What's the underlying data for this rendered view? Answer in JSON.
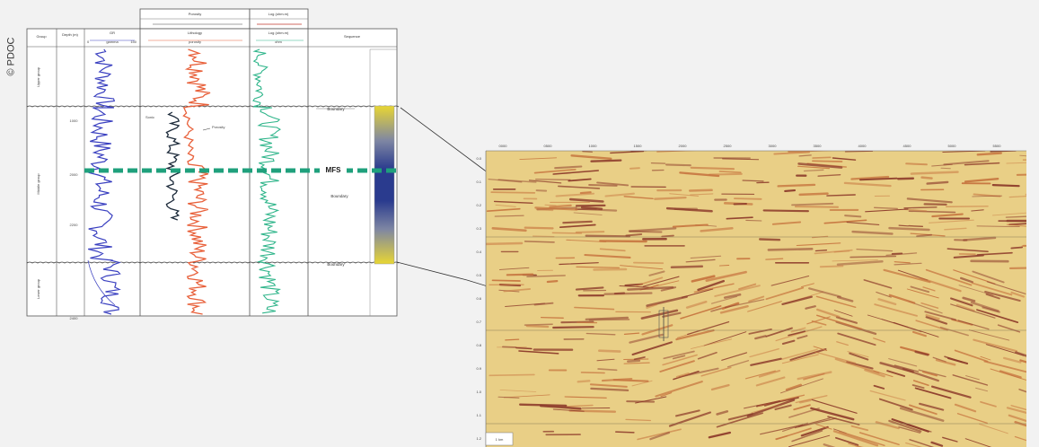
{
  "copyright": "© PDOC",
  "well_log": {
    "columns": [
      {
        "id": "group",
        "label": "Group"
      },
      {
        "id": "depth",
        "label": "Depth (m)"
      },
      {
        "id": "gr",
        "label": "GR"
      },
      {
        "id": "lith",
        "label": "Lithology"
      },
      {
        "id": "logs2",
        "label": "Log (ohm.m)"
      },
      {
        "id": "seq",
        "label": "Sequence"
      }
    ],
    "top_headers": [
      {
        "id": "top-a",
        "label": "Porosity"
      },
      {
        "id": "top-b",
        "label": "Log (ohm.m)"
      }
    ],
    "subheaders": {
      "gr_left": "0",
      "gr_mid": "gamma",
      "gr_right": "150",
      "lith_label": "porosity",
      "log_label": "ohm"
    },
    "depth_labels": [
      "1000",
      "2000",
      "2200",
      "2400"
    ],
    "group_labels": [
      "Upper group",
      "Middle group",
      "Lower group"
    ],
    "annotations": {
      "curve_a": "Sonic",
      "curve_b": "Porosity"
    },
    "surfaces": [
      {
        "id": "upper",
        "label": "Boundary"
      },
      {
        "id": "mid",
        "label": "Boundary"
      },
      {
        "id": "lower",
        "label": "Boundary"
      }
    ],
    "mfs_label": "MFS",
    "colors": {
      "gr_curve": "#3a40c0",
      "lith_curve": "#e8603a",
      "log_curve": "#2fb58a",
      "mfs_line": "#1fa07c"
    }
  },
  "seismic": {
    "top_ticks": [
      "0000",
      "0500",
      "1000",
      "1500",
      "2000",
      "2500",
      "3000",
      "3500",
      "4000",
      "4500",
      "5000",
      "5500"
    ],
    "left_ticks": [
      "0.0",
      "0.1",
      "0.2",
      "0.3",
      "0.4",
      "0.5",
      "0.6",
      "0.7",
      "0.8",
      "0.9",
      "1.0",
      "1.1",
      "1.2"
    ],
    "scale_label": "1 km",
    "colors": {
      "background": "#e9cf86",
      "reflector_dark": "#8c3a2a",
      "reflector_mid": "#c6743f"
    }
  }
}
